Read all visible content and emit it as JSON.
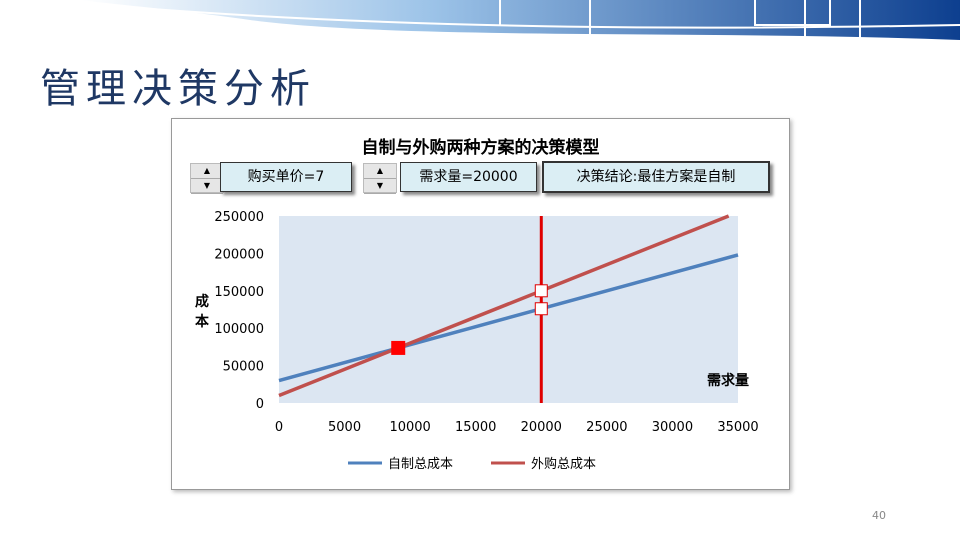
{
  "slide_title": "管理决策分析",
  "page_number": "40",
  "controls": {
    "price_label": "购买单价=7",
    "demand_label": "需求量=20000",
    "conclusion_label": "决策结论:最佳方案是自制"
  },
  "colors": {
    "make": "#4f81bd",
    "buy": "#c0504d",
    "demand_line": "#e00000",
    "plot_bg": "#dce6f2"
  },
  "chart_data": {
    "type": "line",
    "title": "自制与外购两种方案的决策模型",
    "xlabel": "需求量",
    "ylabel": "成本",
    "xlim": [
      0,
      35000
    ],
    "ylim": [
      0,
      250000
    ],
    "xticks": [
      0,
      5000,
      10000,
      15000,
      20000,
      25000,
      30000,
      35000
    ],
    "yticks": [
      0,
      50000,
      100000,
      150000,
      200000,
      250000
    ],
    "legend": "bottom",
    "series": [
      {
        "name": "自制总成本",
        "x": [
          0,
          35000
        ],
        "y": [
          30000,
          198000
        ]
      },
      {
        "name": "外购总成本",
        "x": [
          0,
          34286
        ],
        "y": [
          10000,
          250000
        ]
      }
    ],
    "vertical_line": {
      "x": 20000
    },
    "markers": [
      {
        "x": 20000,
        "y": 150000
      },
      {
        "x": 20000,
        "y": 126000
      }
    ],
    "breakeven": {
      "x": 9091,
      "y": 73636
    }
  }
}
